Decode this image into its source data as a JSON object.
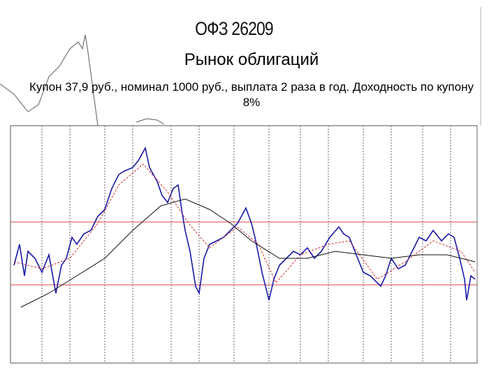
{
  "slide": {
    "title": "ОФЗ 26209",
    "heading": "Рынок облигаций",
    "subtitle": "Купон 37,9 руб., номинал 1000 руб., выплата 2 раза в год. Доходность по купону 8%"
  }
}
